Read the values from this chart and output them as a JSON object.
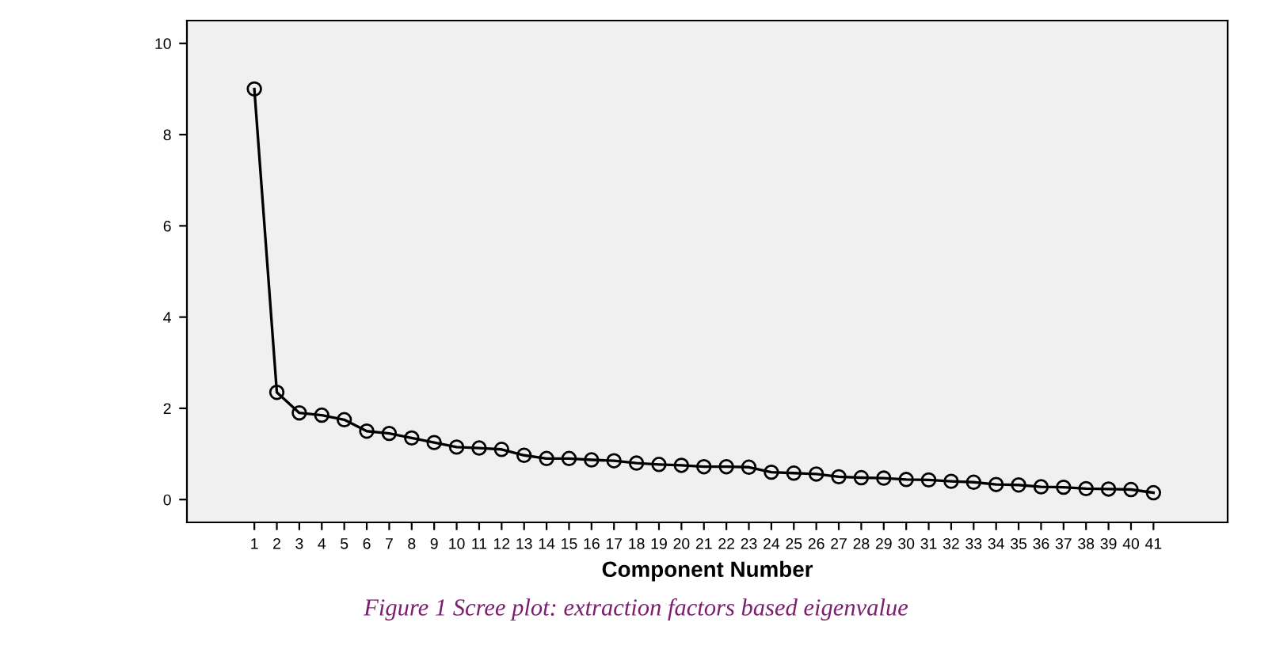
{
  "chart_data": {
    "type": "line",
    "title": "Figure 1 Scree plot: extraction factors based eigenvalue",
    "xlabel": "Component Number",
    "categories": [
      "1",
      "2",
      "3",
      "4",
      "5",
      "6",
      "7",
      "8",
      "9",
      "10",
      "11",
      "12",
      "13",
      "14",
      "15",
      "16",
      "17",
      "18",
      "19",
      "20",
      "21",
      "22",
      "23",
      "24",
      "25",
      "26",
      "27",
      "28",
      "29",
      "30",
      "31",
      "32",
      "33",
      "34",
      "35",
      "36",
      "37",
      "38",
      "39",
      "40",
      "41"
    ],
    "series": [
      {
        "color": "#000000",
        "values": [
          9.0,
          2.35,
          1.9,
          1.85,
          1.75,
          1.5,
          1.45,
          1.35,
          1.25,
          1.15,
          1.13,
          1.1,
          0.97,
          0.9,
          0.9,
          0.87,
          0.85,
          0.8,
          0.77,
          0.75,
          0.72,
          0.72,
          0.71,
          0.6,
          0.58,
          0.56,
          0.5,
          0.48,
          0.47,
          0.44,
          0.43,
          0.4,
          0.38,
          0.33,
          0.32,
          0.28,
          0.27,
          0.24,
          0.23,
          0.22,
          0.15
        ]
      }
    ],
    "ylim": [
      -0.5,
      10.5
    ],
    "yticks": [
      0,
      2,
      4,
      6,
      8,
      10
    ],
    "marker": "circle",
    "line_style": "solid",
    "grid": false,
    "legend": false
  }
}
